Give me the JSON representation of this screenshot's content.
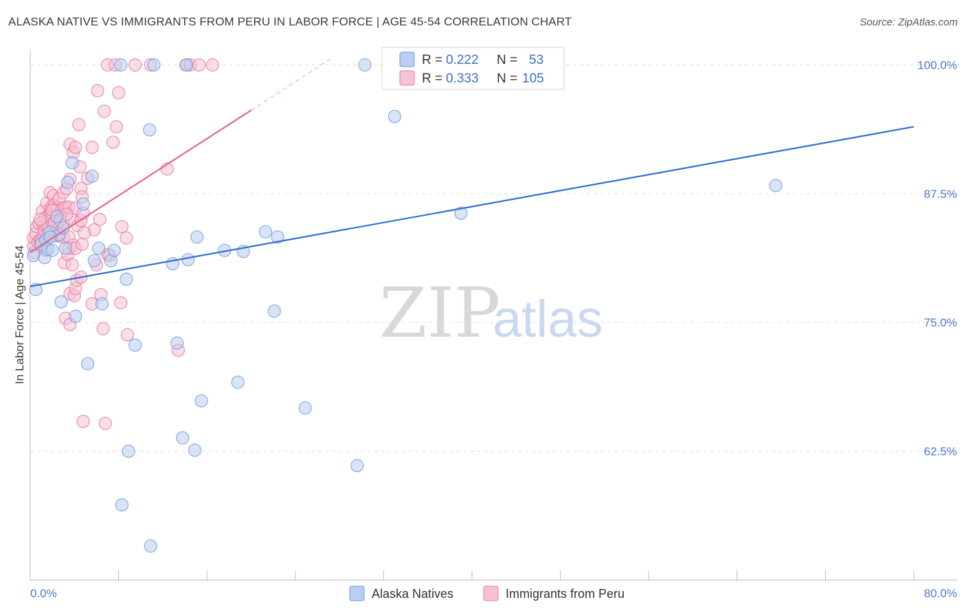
{
  "title": "ALASKA NATIVE VS IMMIGRANTS FROM PERU IN LABOR FORCE | AGE 45-54 CORRELATION CHART",
  "source": "Source: ZipAtlas.com",
  "watermark": {
    "zip": "ZIP",
    "atlas": "atlas"
  },
  "chart_data": {
    "type": "scatter",
    "title": "ALASKA NATIVE VS IMMIGRANTS FROM PERU IN LABOR FORCE | AGE 45-54 CORRELATION CHART",
    "xlabel": "",
    "ylabel": "In Labor Force | Age 45-54",
    "xlim": [
      0,
      80
    ],
    "ylim": [
      50,
      101.5
    ],
    "x_tick_labels": {
      "left": "0.0%",
      "right": "80.0%"
    },
    "y_ticks": [
      {
        "value": 100,
        "label": "100.0%"
      },
      {
        "value": 87.5,
        "label": "87.5%"
      },
      {
        "value": 75,
        "label": "75.0%"
      },
      {
        "value": 62.5,
        "label": "62.5%"
      }
    ],
    "legend": {
      "r_label": "R =",
      "n_label": "N =",
      "entries": [
        {
          "r": "0.222",
          "n": "53"
        },
        {
          "r": "0.333",
          "n": "105"
        }
      ]
    },
    "series": [
      {
        "name": "Alaska Natives",
        "color": "#6a9ae0",
        "fill": "#b9cff1",
        "trend": {
          "x": [
            0,
            80
          ],
          "y": [
            78.5,
            94.0
          ]
        },
        "points": [
          [
            0.3,
            81.5
          ],
          [
            0.5,
            78.2
          ],
          [
            1.0,
            82.6
          ],
          [
            1.3,
            81.3
          ],
          [
            1.4,
            83.0
          ],
          [
            1.8,
            83.8
          ],
          [
            1.6,
            82.1
          ],
          [
            2.0,
            82.0
          ],
          [
            2.4,
            85.3
          ],
          [
            2.6,
            83.5
          ],
          [
            2.8,
            77.0
          ],
          [
            3.0,
            84.2
          ],
          [
            3.2,
            82.2
          ],
          [
            3.4,
            88.6
          ],
          [
            3.8,
            90.5
          ],
          [
            4.1,
            75.6
          ],
          [
            4.8,
            86.5
          ],
          [
            5.2,
            71.0
          ],
          [
            5.6,
            89.2
          ],
          [
            5.8,
            81.0
          ],
          [
            6.2,
            82.2
          ],
          [
            6.5,
            76.8
          ],
          [
            7.3,
            81.0
          ],
          [
            7.6,
            82.0
          ],
          [
            8.2,
            100.0
          ],
          [
            8.3,
            57.3
          ],
          [
            8.7,
            79.2
          ],
          [
            8.9,
            62.5
          ],
          [
            9.5,
            72.8
          ],
          [
            10.8,
            93.7
          ],
          [
            10.9,
            53.3
          ],
          [
            11.2,
            100.0
          ],
          [
            12.9,
            80.7
          ],
          [
            13.3,
            73.0
          ],
          [
            13.8,
            63.8
          ],
          [
            14.1,
            100.0
          ],
          [
            14.3,
            81.1
          ],
          [
            14.9,
            62.6
          ],
          [
            15.1,
            83.3
          ],
          [
            15.5,
            67.4
          ],
          [
            17.6,
            82.0
          ],
          [
            18.8,
            69.2
          ],
          [
            19.3,
            81.9
          ],
          [
            21.3,
            83.8
          ],
          [
            22.1,
            76.1
          ],
          [
            22.4,
            83.3
          ],
          [
            24.9,
            66.7
          ],
          [
            29.6,
            61.1
          ],
          [
            30.3,
            100.0
          ],
          [
            33.0,
            95.0
          ],
          [
            39.0,
            85.6
          ],
          [
            67.5,
            88.3
          ],
          [
            1.8,
            83.3
          ]
        ]
      },
      {
        "name": "Immigrants from Peru",
        "color": "#e8759d",
        "fill": "#f6c3d4",
        "trend": {
          "x": [
            0,
            20
          ],
          "y": [
            81.8,
            95.6
          ]
        },
        "trend_dashed": {
          "x": [
            20,
            27.5
          ],
          "y": [
            95.6,
            100.8
          ]
        },
        "points": [
          [
            0.3,
            82.4
          ],
          [
            0.3,
            83.2
          ],
          [
            0.4,
            81.8
          ],
          [
            0.5,
            83.6
          ],
          [
            0.6,
            84.3
          ],
          [
            0.7,
            82.8
          ],
          [
            0.8,
            84.6
          ],
          [
            0.9,
            83.0
          ],
          [
            1.0,
            82.9
          ],
          [
            1.1,
            85.8
          ],
          [
            1.1,
            84.7
          ],
          [
            1.2,
            83.4
          ],
          [
            1.3,
            83.9
          ],
          [
            1.4,
            85.2
          ],
          [
            1.5,
            86.6
          ],
          [
            1.6,
            84.2
          ],
          [
            1.7,
            85.5
          ],
          [
            1.8,
            86.0
          ],
          [
            1.8,
            87.6
          ],
          [
            1.9,
            85.7
          ],
          [
            2.0,
            86.3
          ],
          [
            2.1,
            84.5
          ],
          [
            2.1,
            87.3
          ],
          [
            2.2,
            86.4
          ],
          [
            2.3,
            83.4
          ],
          [
            2.4,
            85.2
          ],
          [
            2.5,
            86.1
          ],
          [
            2.5,
            84.1
          ],
          [
            2.6,
            87.0
          ],
          [
            2.7,
            83.4
          ],
          [
            2.8,
            85.8
          ],
          [
            2.9,
            86.1
          ],
          [
            3.0,
            83.3
          ],
          [
            3.0,
            84.7
          ],
          [
            3.0,
            87.6
          ],
          [
            3.1,
            80.8
          ],
          [
            3.2,
            86.2
          ],
          [
            3.2,
            75.4
          ],
          [
            3.3,
            88.0
          ],
          [
            3.4,
            81.6
          ],
          [
            3.5,
            86.2
          ],
          [
            3.5,
            83.3
          ],
          [
            3.5,
            82.2
          ],
          [
            3.6,
            74.8
          ],
          [
            3.6,
            88.9
          ],
          [
            3.6,
            92.3
          ],
          [
            3.6,
            77.8
          ],
          [
            3.7,
            85.0
          ],
          [
            3.8,
            80.6
          ],
          [
            3.9,
            91.5
          ],
          [
            3.9,
            82.5
          ],
          [
            4.0,
            77.6
          ],
          [
            4.1,
            78.3
          ],
          [
            4.1,
            86.1
          ],
          [
            4.1,
            92.0
          ],
          [
            4.1,
            82.2
          ],
          [
            4.2,
            79.1
          ],
          [
            4.3,
            84.4
          ],
          [
            4.4,
            94.2
          ],
          [
            4.5,
            90.1
          ],
          [
            4.6,
            88.0
          ],
          [
            4.6,
            79.4
          ],
          [
            4.6,
            84.9
          ],
          [
            4.7,
            87.2
          ],
          [
            4.7,
            82.6
          ],
          [
            4.8,
            85.6
          ],
          [
            4.8,
            65.4
          ],
          [
            5.2,
            89.0
          ],
          [
            5.6,
            76.8
          ],
          [
            5.6,
            92.0
          ],
          [
            5.8,
            84.0
          ],
          [
            6.0,
            80.6
          ],
          [
            6.1,
            97.5
          ],
          [
            6.3,
            85.0
          ],
          [
            6.4,
            77.7
          ],
          [
            6.6,
            74.4
          ],
          [
            6.7,
            95.5
          ],
          [
            6.8,
            65.2
          ],
          [
            7.0,
            100.0
          ],
          [
            7.0,
            81.6
          ],
          [
            7.2,
            81.5
          ],
          [
            7.5,
            92.5
          ],
          [
            7.7,
            100.0
          ],
          [
            7.8,
            94.0
          ],
          [
            8.0,
            97.3
          ],
          [
            8.2,
            76.9
          ],
          [
            8.3,
            84.3
          ],
          [
            8.7,
            83.2
          ],
          [
            8.8,
            73.8
          ],
          [
            9.5,
            100.0
          ],
          [
            10.9,
            100.0
          ],
          [
            12.4,
            89.9
          ],
          [
            13.4,
            72.3
          ],
          [
            14.2,
            100.0
          ],
          [
            14.5,
            100.0
          ],
          [
            15.3,
            100.0
          ],
          [
            16.5,
            100.0
          ],
          [
            2.0,
            85.9
          ],
          [
            1.4,
            82.0
          ],
          [
            2.2,
            84.8
          ],
          [
            0.9,
            85.0
          ],
          [
            1.6,
            83.6
          ],
          [
            2.7,
            84.9
          ],
          [
            3.3,
            85.5
          ],
          [
            4.9,
            83.7
          ]
        ]
      }
    ]
  }
}
